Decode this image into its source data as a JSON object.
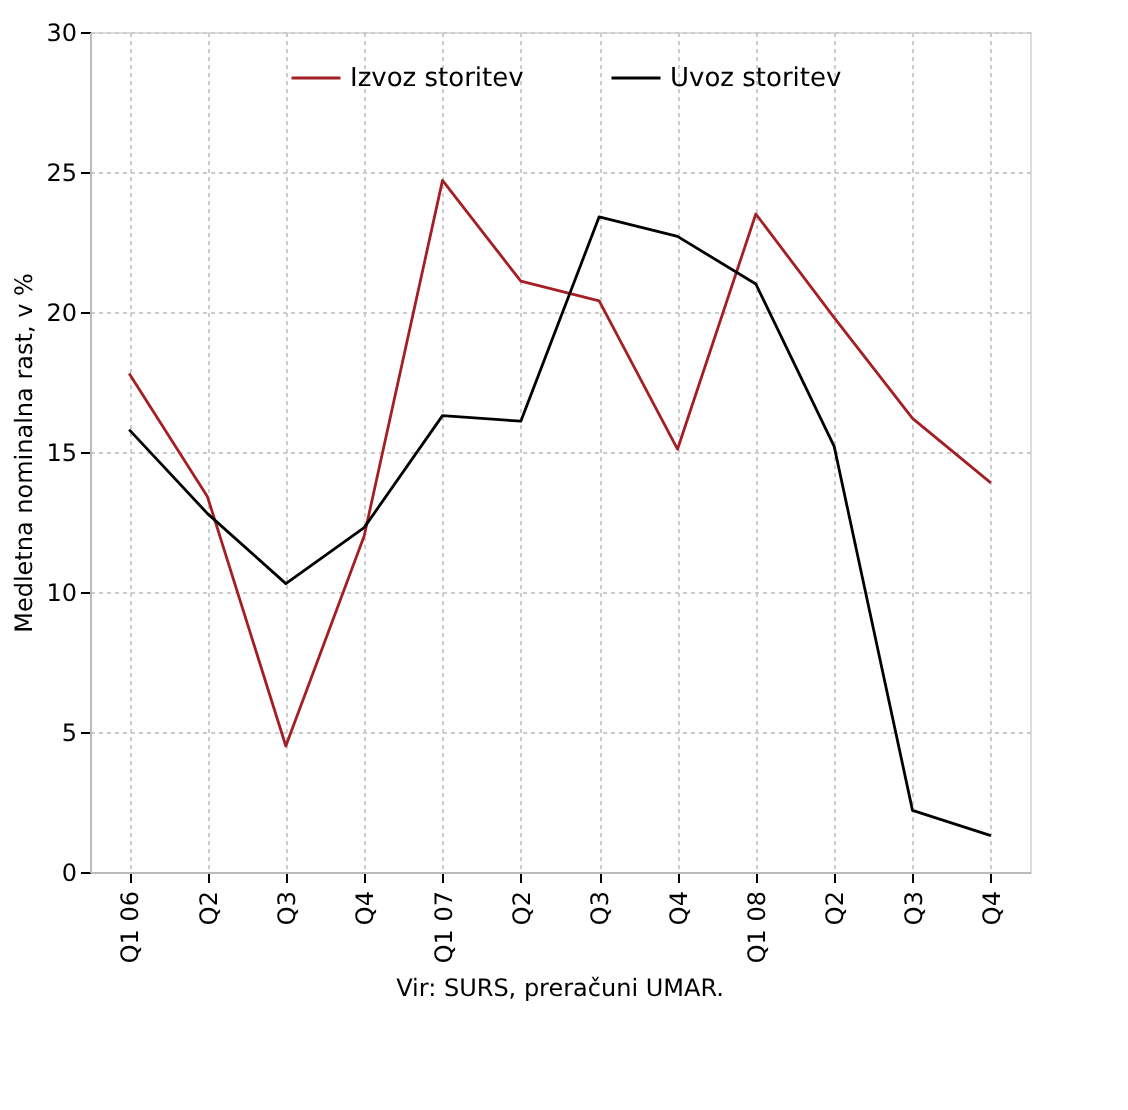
{
  "chart_data": {
    "type": "line",
    "ylabel": "Medletna  nominalna rast, v %",
    "categories": [
      "Q1 06",
      "Q2",
      "Q3",
      "Q4",
      "Q1 07",
      "Q2",
      "Q3",
      "Q4",
      "Q1 08",
      "Q2",
      "Q3",
      "Q4"
    ],
    "series": [
      {
        "name": "Izvoz storitev",
        "color": "#a31f24",
        "values": [
          17.8,
          13.4,
          4.5,
          12.0,
          24.7,
          21.1,
          20.4,
          15.1,
          23.5,
          19.8,
          16.2,
          13.9
        ]
      },
      {
        "name": "Uvoz storitev",
        "color": "#000000",
        "values": [
          15.8,
          12.8,
          10.3,
          12.3,
          16.3,
          16.1,
          23.4,
          22.7,
          21.0,
          15.2,
          2.2,
          1.3
        ]
      }
    ],
    "ylim": [
      0,
      30
    ],
    "yticks": [
      0,
      5,
      10,
      15,
      20,
      25,
      30
    ],
    "grid": true,
    "legend": "top",
    "marker": "none",
    "line_style": "solid",
    "annotations": [
      "Vir: SURS, preračuni UMAR."
    ]
  }
}
